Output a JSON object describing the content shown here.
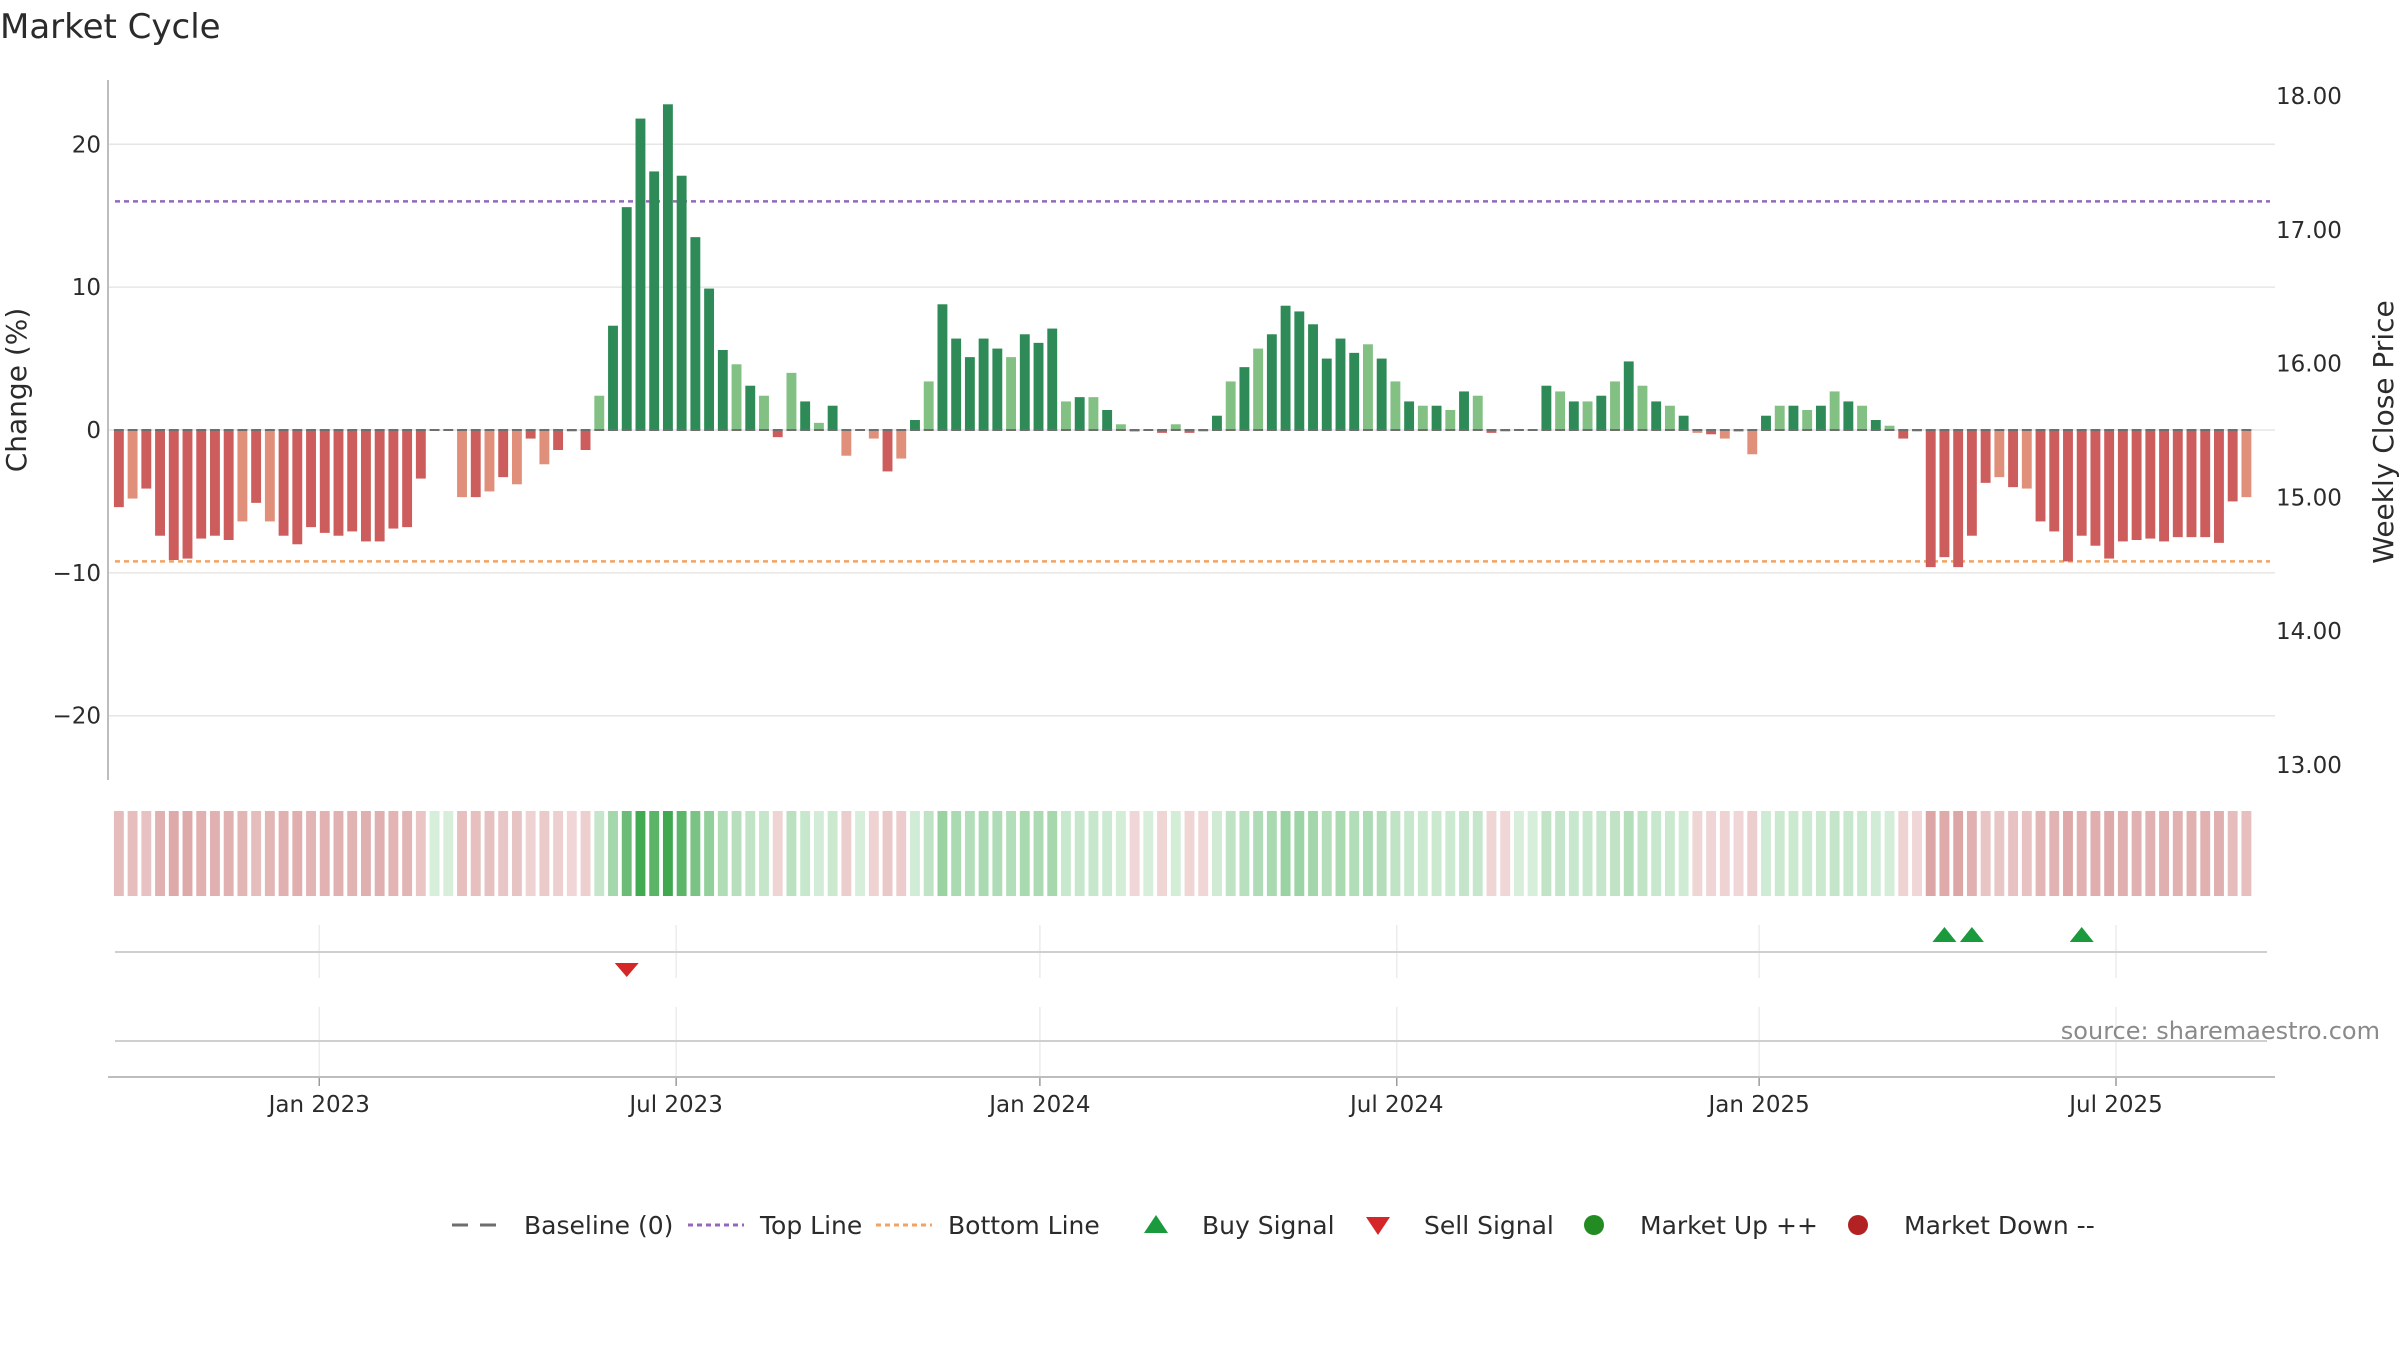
{
  "chart_data": {
    "type": "bar",
    "title": "Market Cycle",
    "ylabel_left": "Change (%)",
    "ylabel_right": "Weekly Close Price",
    "ylim_left": [
      -24.5,
      24.5
    ],
    "ylim_right": [
      13.0,
      18.0
    ],
    "yticks_left": [
      "20",
      "10",
      "0",
      "−10",
      "−20"
    ],
    "yticks_right": [
      "18.00",
      "17.00",
      "16.00",
      "15.00",
      "14.00",
      "13.00"
    ],
    "xtick_labels": [
      "Jan 2023",
      "Jul 2023",
      "Jan 2024",
      "Jul 2024",
      "Jan 2025",
      "Jul 2025"
    ],
    "top_line": 16.0,
    "bottom_line": -9.2,
    "source": "source: sharemaestro.com",
    "colors": {
      "strong_up": "#2e8b57",
      "up": "#82c084",
      "down": "#e0907a",
      "strong_down": "#cd5c5c",
      "top_line": "#9467bd",
      "bottom_line": "#f4a261",
      "buy": "#1a9a3c",
      "sell": "#d62728",
      "market_up": "#228b22",
      "market_down": "#b22222"
    },
    "values": [
      -5.4,
      -4.8,
      -4.1,
      -7.4,
      -9.1,
      -9.0,
      -7.6,
      -7.4,
      -7.7,
      -6.4,
      -5.1,
      -6.4,
      -7.4,
      -8.0,
      -6.8,
      -7.2,
      -7.4,
      -7.1,
      -7.8,
      -7.8,
      -6.9,
      -6.8,
      -3.4,
      0,
      0,
      -4.7,
      -4.7,
      -4.3,
      -3.3,
      -3.8,
      -0.6,
      -2.4,
      -1.4,
      -0.1,
      -1.4,
      2.4,
      7.3,
      15.6,
      21.8,
      18.1,
      22.8,
      17.8,
      13.5,
      9.9,
      5.6,
      4.6,
      3.1,
      2.4,
      -0.5,
      4.0,
      2.0,
      0.5,
      1.7,
      -1.8,
      0,
      -0.6,
      -2.9,
      -2.0,
      0.7,
      3.4,
      8.8,
      6.4,
      5.1,
      6.4,
      5.7,
      5.1,
      6.7,
      6.1,
      7.1,
      2.0,
      2.3,
      2.3,
      1.4,
      0.4,
      -0.1,
      0,
      -0.2,
      0.4,
      -0.2,
      -0.1,
      1.0,
      3.4,
      4.4,
      5.7,
      6.7,
      8.7,
      8.3,
      7.4,
      5.0,
      6.4,
      5.4,
      6.0,
      5.0,
      3.4,
      2.0,
      1.7,
      1.7,
      1.4,
      2.7,
      2.4,
      -0.2,
      -0.1,
      0,
      0,
      3.1,
      2.7,
      2.0,
      2.0,
      2.4,
      3.4,
      4.8,
      3.1,
      2.0,
      1.7,
      1.0,
      -0.2,
      -0.3,
      -0.6,
      -0.1,
      -1.7,
      1.0,
      1.7,
      1.7,
      1.4,
      1.7,
      2.7,
      2.0,
      1.7,
      0.7,
      0.3,
      -0.6,
      -0.1,
      -9.6,
      -8.9,
      -9.6,
      -7.4,
      -3.7,
      -3.3,
      -4.0,
      -4.1,
      -6.4,
      -7.1,
      -9.2,
      -7.4,
      -8.1,
      -9.0,
      -7.8,
      -7.7,
      -7.6,
      -7.8,
      -7.5,
      -7.5,
      -7.5,
      -7.9,
      -5.0,
      -4.7
    ],
    "buy_signal_weeks": [
      133,
      135,
      143
    ],
    "sell_signal_weeks": [
      37
    ],
    "x_range_weeks": [
      0,
      157
    ],
    "xtick_weeks": [
      15.1,
      41.1,
      67.6,
      93.6,
      120.0,
      146.0
    ]
  },
  "legend": {
    "items": [
      {
        "label": "Baseline (0)",
        "icon": "dashed-line-icon",
        "color": "#6e6e6e"
      },
      {
        "label": "Top Line",
        "icon": "dotted-line-icon",
        "color": "#9467bd"
      },
      {
        "label": "Bottom Line",
        "icon": "dotted-line-icon",
        "color": "#f4a261"
      },
      {
        "label": "Buy Signal",
        "icon": "triangle-up-icon",
        "color": "#1a9a3c"
      },
      {
        "label": "Sell Signal",
        "icon": "triangle-down-icon",
        "color": "#d62728"
      },
      {
        "label": "Market Up ++",
        "icon": "circle-icon",
        "color": "#228b22"
      },
      {
        "label": "Market Down --",
        "icon": "circle-icon",
        "color": "#b22222"
      }
    ]
  }
}
